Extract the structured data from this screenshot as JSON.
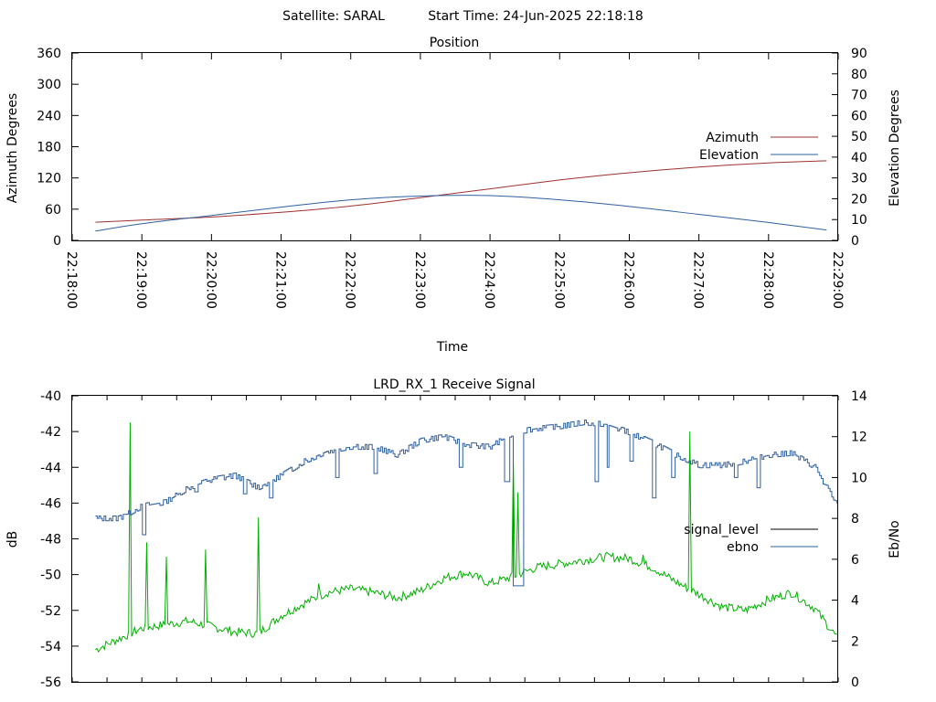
{
  "header": {
    "satellite_label": "Satellite: SARAL",
    "start_time_label": "Start Time: 24-Jun-2025 22:18:18"
  },
  "colors": {
    "azimuth": "#a03030",
    "elevation": "#3060a0",
    "signal_level": "#000000",
    "ebno": "#3060a0",
    "signal_trace": "#00b000"
  },
  "chart_data": [
    {
      "type": "line",
      "title": "Position",
      "xlabel": "Time",
      "ylabel": "Azimuth Degrees",
      "y2label": "Elevation Degrees",
      "xlim": [
        "22:18:00",
        "22:29:00"
      ],
      "x_ticks": [
        "22:18:00",
        "22:19:00",
        "22:20:00",
        "22:21:00",
        "22:22:00",
        "22:23:00",
        "22:24:00",
        "22:25:00",
        "22:26:00",
        "22:27:00",
        "22:28:00",
        "22:29:00"
      ],
      "ylim": [
        0,
        360
      ],
      "y_ticks": [
        0,
        60,
        120,
        180,
        240,
        300,
        360
      ],
      "y2lim": [
        0,
        90
      ],
      "y2_ticks": [
        0,
        10,
        20,
        30,
        40,
        50,
        60,
        70,
        80,
        90
      ],
      "legend_position": "right",
      "grid": false,
      "x": [
        "22:18:20",
        "22:19:00",
        "22:20:00",
        "22:21:00",
        "22:22:00",
        "22:23:00",
        "22:24:00",
        "22:25:00",
        "22:26:00",
        "22:27:00",
        "22:28:00",
        "22:28:50"
      ],
      "series": [
        {
          "name": "Azimuth",
          "axis": "left",
          "values": [
            35,
            39,
            45,
            54,
            66,
            82,
            99,
            116,
            130,
            141,
            149,
            153
          ]
        },
        {
          "name": "Elevation",
          "axis": "right",
          "values": [
            4.5,
            8,
            12,
            16,
            19.5,
            21.3,
            21.5,
            19.5,
            16.3,
            12.5,
            8.6,
            5
          ]
        }
      ]
    },
    {
      "type": "line",
      "title": "LRD_RX_1 Receive Signal",
      "xlabel": "",
      "ylabel": "dB",
      "y2label": "Eb/No",
      "xlim": [
        "22:18:00",
        "22:29:00"
      ],
      "ylim": [
        -56,
        -40
      ],
      "y_ticks": [
        -56,
        -54,
        -52,
        -50,
        -48,
        -46,
        -44,
        -42,
        -40
      ],
      "y2lim": [
        0,
        14
      ],
      "y2_ticks": [
        0,
        2,
        4,
        6,
        8,
        10,
        12,
        14
      ],
      "legend_position": "right",
      "grid": false,
      "legend": [
        "signal_level",
        "ebno"
      ],
      "x": [
        "22:18:20",
        "22:18:40",
        "22:19:00",
        "22:19:20",
        "22:19:40",
        "22:20:00",
        "22:20:20",
        "22:20:40",
        "22:21:00",
        "22:21:20",
        "22:21:40",
        "22:22:00",
        "22:22:20",
        "22:22:40",
        "22:23:00",
        "22:23:20",
        "22:23:40",
        "22:24:00",
        "22:24:20",
        "22:24:40",
        "22:25:00",
        "22:25:20",
        "22:25:40",
        "22:26:00",
        "22:26:20",
        "22:26:40",
        "22:27:00",
        "22:27:20",
        "22:27:40",
        "22:28:00",
        "22:28:20",
        "22:28:40",
        "22:29:00"
      ],
      "series": [
        {
          "name": "signal_level",
          "axis": "left",
          "values": [
            -54.2,
            -53.6,
            -53.0,
            -52.8,
            -52.6,
            -52.9,
            -53.2,
            -53.3,
            -52.3,
            -51.6,
            -51.0,
            -50.8,
            -51.0,
            -51.3,
            -50.9,
            -50.2,
            -49.9,
            -50.5,
            -50.1,
            -49.6,
            -49.4,
            -49.2,
            -49.0,
            -49.1,
            -49.6,
            -50.4,
            -51.1,
            -51.8,
            -52.0,
            -51.4,
            -51.0,
            -51.9,
            -53.6
          ]
        },
        {
          "name": "ebno",
          "axis": "right",
          "values": [
            8.0,
            8.0,
            8.6,
            8.8,
            9.5,
            9.9,
            10.1,
            9.5,
            10.1,
            10.8,
            11.3,
            11.5,
            11.5,
            11.1,
            11.8,
            12.0,
            11.6,
            11.5,
            12.2,
            12.4,
            12.5,
            12.7,
            12.6,
            12.2,
            11.7,
            11.1,
            10.6,
            10.6,
            10.8,
            11.1,
            11.2,
            10.5,
            8.5
          ]
        }
      ]
    }
  ]
}
